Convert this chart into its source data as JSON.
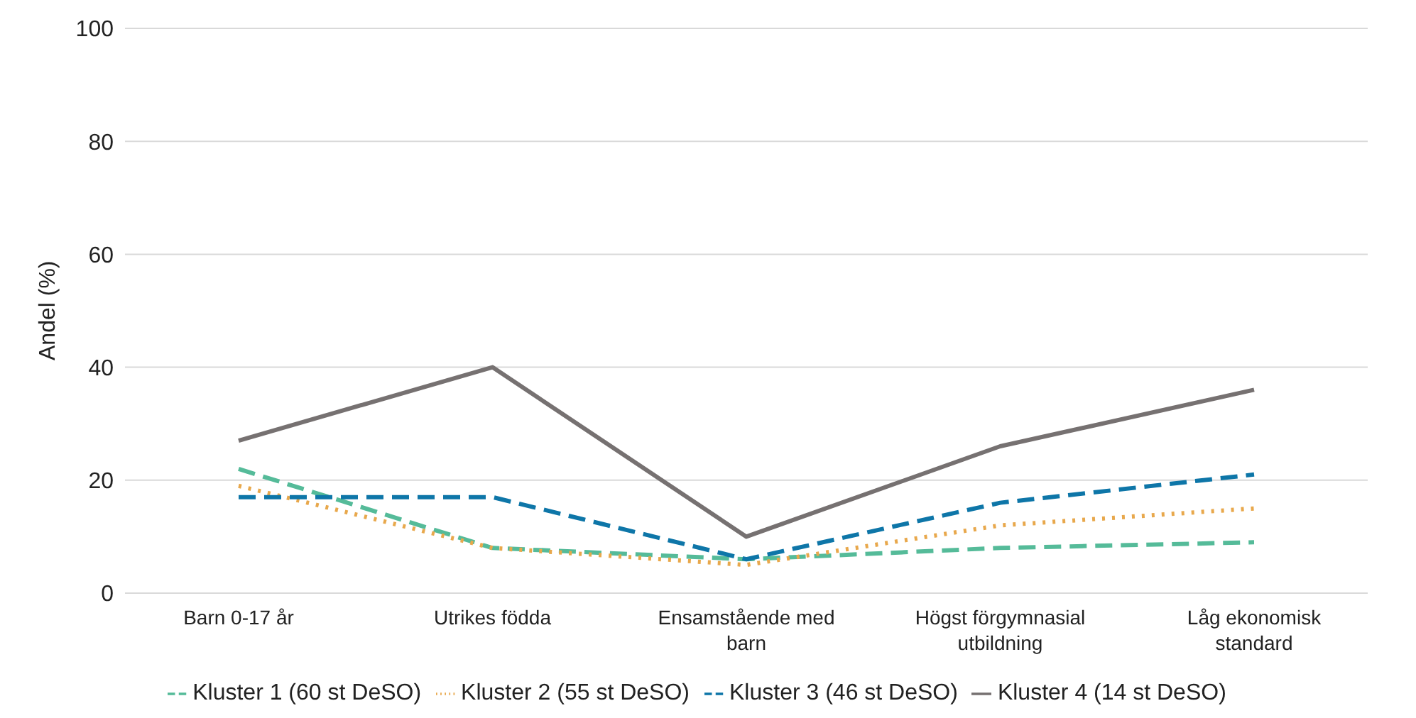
{
  "chart_data": {
    "type": "line",
    "ylabel": "Andel (%)",
    "categories": [
      "Barn 0-17 år",
      "Utrikes födda",
      "Ensamstående med barn",
      "Högst förgymnasial utbildning",
      "Låg ekonomisk standard"
    ],
    "series": [
      {
        "name": "Kluster 1 (60 st DeSO)",
        "color": "#55bb99",
        "line_style": "dashed",
        "values": [
          22,
          8,
          6,
          8,
          9
        ]
      },
      {
        "name": "Kluster 2 (55 st DeSO)",
        "color": "#e8a84c",
        "line_style": "dotted",
        "values": [
          19,
          8,
          5,
          12,
          15
        ]
      },
      {
        "name": "Kluster 3 (46 st DeSO)",
        "color": "#0e76a8",
        "line_style": "dashed",
        "values": [
          17,
          17,
          6,
          16,
          21
        ]
      },
      {
        "name": "Kluster 4 (14 st DeSO)",
        "color": "#767171",
        "line_style": "solid",
        "values": [
          27,
          40,
          10,
          26,
          36
        ]
      }
    ],
    "ylim": [
      0,
      100
    ],
    "yticks": [
      0,
      20,
      40,
      60,
      80,
      100
    ],
    "grid": "y",
    "legend": "bottom",
    "marker": "none"
  }
}
